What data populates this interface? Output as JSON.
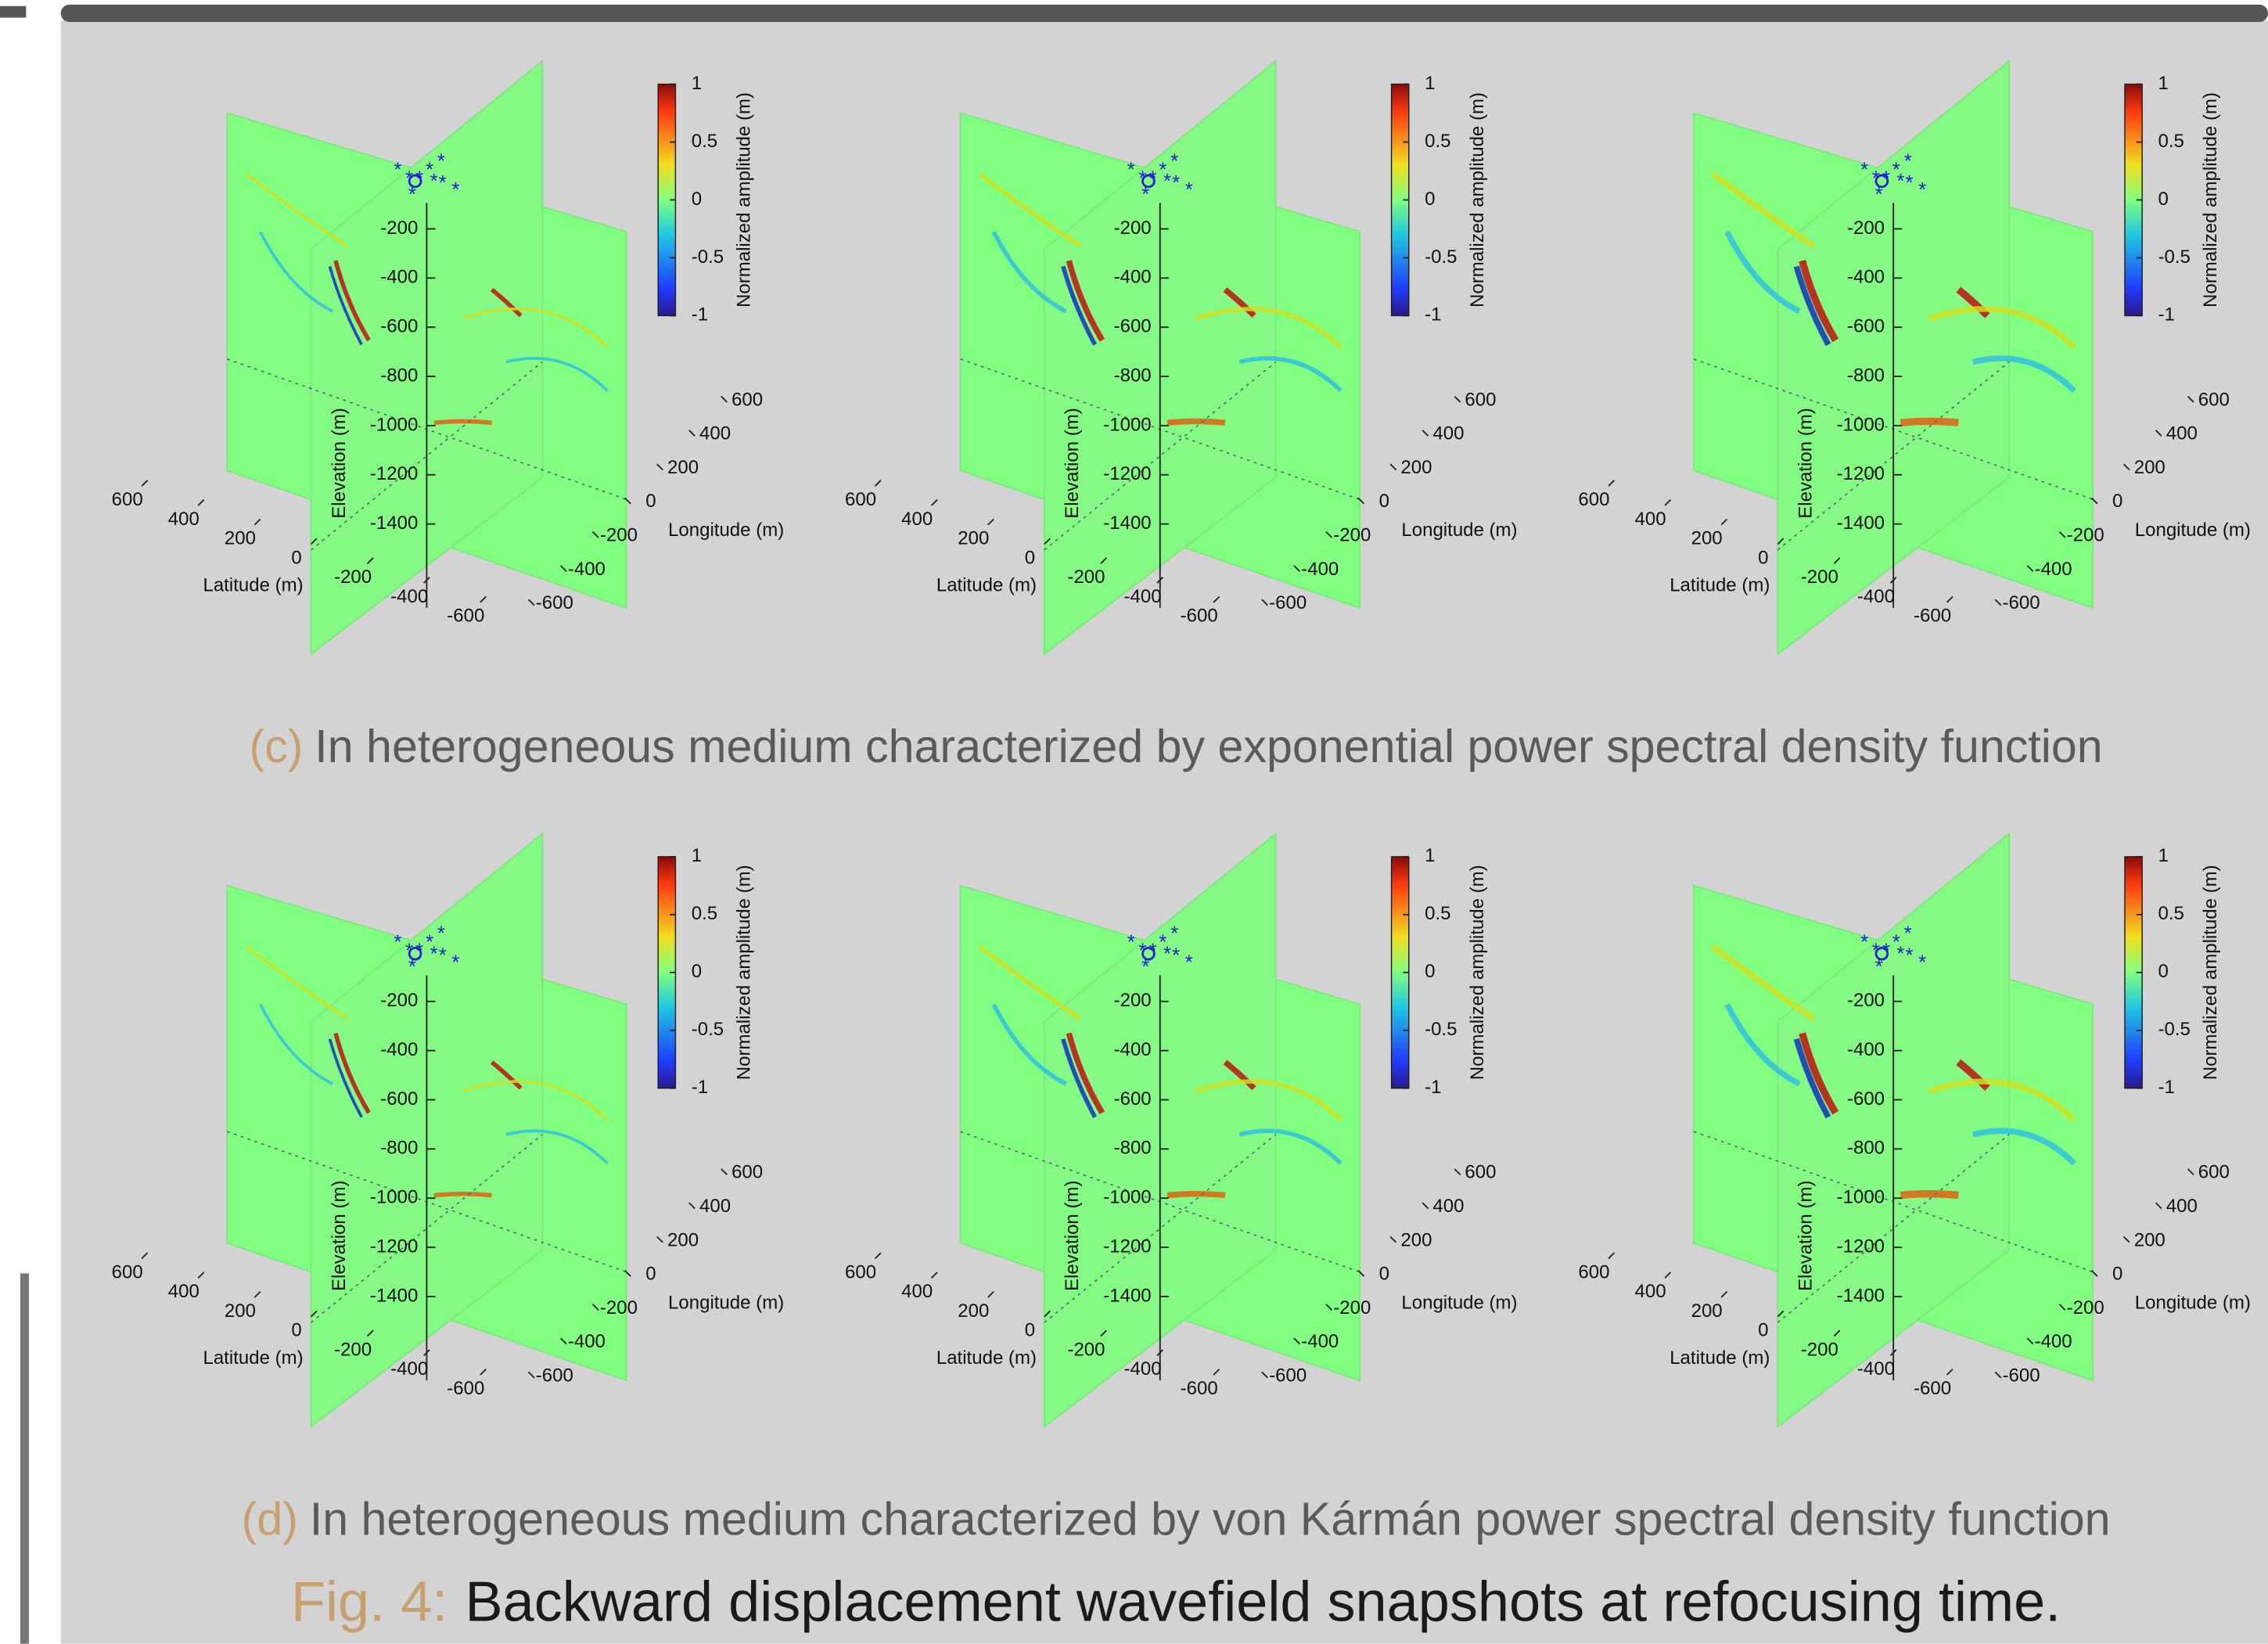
{
  "panel": {
    "elevation": {
      "label": "Elevation (m)",
      "ticks": [
        -200,
        -400,
        -600,
        -800,
        -1000,
        -1200,
        -1400
      ]
    },
    "latitude": {
      "label": "Latitude (m)",
      "ticks": [
        600,
        400,
        200,
        0,
        -200,
        -400,
        -600
      ]
    },
    "longitude": {
      "label": "Longitude (m)",
      "ticks": [
        600,
        400,
        200,
        0,
        -200,
        -400,
        -600
      ]
    },
    "colorbar": {
      "label": "Normalized amplitude (m)",
      "ticks": [
        1,
        0.5,
        0,
        -0.5,
        -1
      ]
    }
  },
  "subfigures": [
    {
      "label": "(c)",
      "text": "In heterogeneous medium characterized by exponential power spectral density function"
    },
    {
      "label": "(d)",
      "text": "In heterogeneous medium characterized by von Kármán power spectral density function"
    }
  ],
  "figure": {
    "label": "Fig. 4:",
    "text": "Backward displacement wavefield snapshots at refocusing time."
  }
}
